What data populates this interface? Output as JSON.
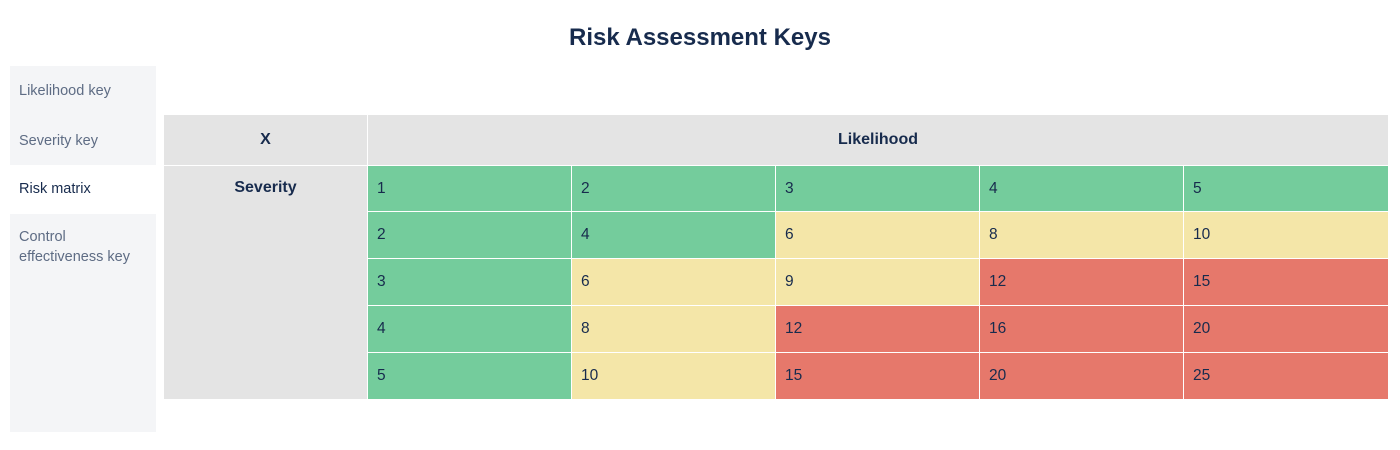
{
  "page": {
    "title": "Risk Assessment Keys"
  },
  "sidebar": {
    "tabs": [
      {
        "label": "Likelihood key"
      },
      {
        "label": "Severity key"
      },
      {
        "label": "Risk matrix",
        "active": true
      },
      {
        "label": "Control effectiveness key"
      }
    ]
  },
  "matrix": {
    "corner": "X",
    "column_header": "Likelihood",
    "row_header": "Severity",
    "colors": {
      "low": "#74cc9c",
      "medium": "#f4e6a8",
      "high": "#e6786b",
      "header": "#e4e4e4"
    },
    "rows": [
      [
        {
          "v": "1",
          "level": "low"
        },
        {
          "v": "2",
          "level": "low"
        },
        {
          "v": "3",
          "level": "low"
        },
        {
          "v": "4",
          "level": "low"
        },
        {
          "v": "5",
          "level": "low"
        }
      ],
      [
        {
          "v": "2",
          "level": "low"
        },
        {
          "v": "4",
          "level": "low"
        },
        {
          "v": "6",
          "level": "medium"
        },
        {
          "v": "8",
          "level": "medium"
        },
        {
          "v": "10",
          "level": "medium"
        }
      ],
      [
        {
          "v": "3",
          "level": "low"
        },
        {
          "v": "6",
          "level": "medium"
        },
        {
          "v": "9",
          "level": "medium"
        },
        {
          "v": "12",
          "level": "high"
        },
        {
          "v": "15",
          "level": "high"
        }
      ],
      [
        {
          "v": "4",
          "level": "low"
        },
        {
          "v": "8",
          "level": "medium"
        },
        {
          "v": "12",
          "level": "high"
        },
        {
          "v": "16",
          "level": "high"
        },
        {
          "v": "20",
          "level": "high"
        }
      ],
      [
        {
          "v": "5",
          "level": "low"
        },
        {
          "v": "10",
          "level": "medium"
        },
        {
          "v": "15",
          "level": "high"
        },
        {
          "v": "20",
          "level": "high"
        },
        {
          "v": "25",
          "level": "high"
        }
      ]
    ]
  }
}
